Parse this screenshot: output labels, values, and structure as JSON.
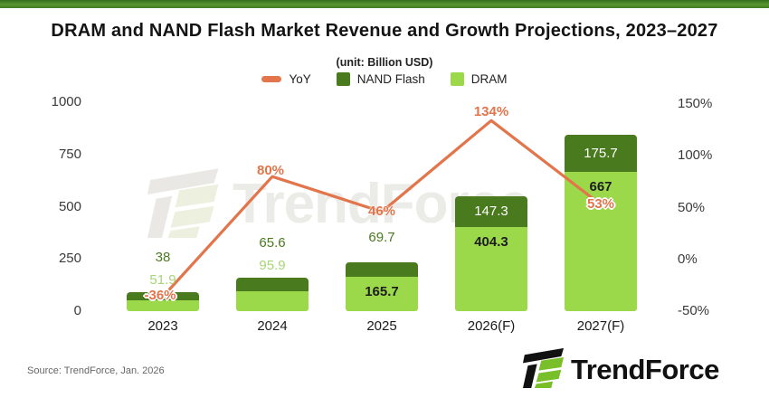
{
  "page": {
    "title": "DRAM and NAND Flash Market Revenue and Growth Projections, 2023–2027",
    "subtitle": "(unit: Billion USD)",
    "source": "Source: TrendForce, Jan. 2026",
    "brand": "TrendForce",
    "watermark": "TrendForce"
  },
  "colors": {
    "dram": "#9BD94A",
    "nand": "#4A7A1E",
    "yoy": "#E2754B",
    "dram_label_out": "#A8D578",
    "nand_label_out": "#4A7A1E",
    "top_band": "#4C8725"
  },
  "legend": {
    "items": [
      {
        "label": "YoY",
        "shape": "dash",
        "color": "#E2754B"
      },
      {
        "label": "NAND Flash",
        "shape": "square",
        "color": "#4A7A1E"
      },
      {
        "label": "DRAM",
        "shape": "square",
        "color": "#9BD94A"
      }
    ]
  },
  "chart_data": {
    "type": "bar",
    "subtype": "stacked-bars-with-line",
    "title": "DRAM and NAND Flash Market Revenue and Growth Projections, 2023–2027",
    "unit": "Billion USD",
    "categories": [
      "2023",
      "2024",
      "2025",
      "2026(F)",
      "2027(F)"
    ],
    "series": [
      {
        "name": "DRAM",
        "type": "bar",
        "stacked": true,
        "color": "#9BD94A",
        "values": [
          51.9,
          95.9,
          165.7,
          404.3,
          667
        ]
      },
      {
        "name": "NAND Flash",
        "type": "bar",
        "stacked": true,
        "color": "#4A7A1E",
        "values": [
          38,
          65.6,
          69.7,
          147.3,
          175.7
        ]
      },
      {
        "name": "YoY",
        "type": "line",
        "axis": "right",
        "color": "#E2754B",
        "values": [
          -36,
          80,
          46,
          134,
          53
        ],
        "labels": [
          "-36%",
          "80%",
          "46%",
          "134%",
          "53%"
        ]
      }
    ],
    "left_axis": {
      "ticks": [
        1000,
        750,
        500,
        250,
        0
      ],
      "min": 0,
      "max": 1000
    },
    "right_axis": {
      "tick_values": [
        150,
        100,
        50,
        0,
        -50
      ],
      "tick_labels": [
        "150%",
        "100%",
        "50%",
        "0%",
        "-50%"
      ],
      "min": -50,
      "max": 150
    },
    "grid": false,
    "legend_position": "top"
  }
}
